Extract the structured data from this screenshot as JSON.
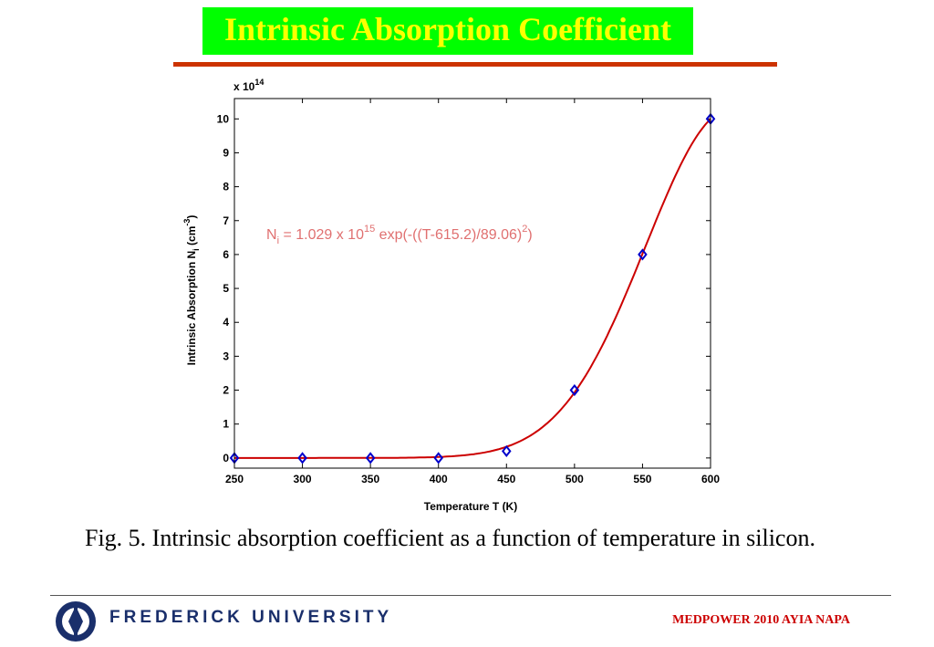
{
  "slide": {
    "title": "Intrinsic Absorption Coefficient",
    "caption": "Fig. 5.  Intrinsic absorption coefficient as a function of temperature in silicon.",
    "footer": {
      "university": "FREDERICK UNIVERSITY",
      "conference": "MEDPOWER 2010 AYIA NAPA"
    },
    "colors": {
      "title_bg": "#00ff00",
      "title_text": "#ffff00",
      "rule": "#cc3300",
      "fit_line": "#cc0000",
      "markers": "#0000cc",
      "equation_text": "#e07070",
      "conference_text": "#cc0000",
      "university_text": "#1a2f6b"
    }
  },
  "chart_data": {
    "type": "scatter",
    "xlabel": "Temperature T (K)",
    "ylabel_main": "Intrinsic Absorption N",
    "ylabel_sub": "i",
    "ylabel_unit": " (cm",
    "ylabel_unit_exp": "-3",
    "ylabel_close": ")",
    "y_multiplier_base": "x 10",
    "y_multiplier_exp": "14",
    "xlim": [
      250,
      600
    ],
    "ylim": [
      -0.3,
      10.6
    ],
    "x_ticks": [
      "250",
      "300",
      "350",
      "400",
      "450",
      "500",
      "550",
      "600"
    ],
    "y_ticks": [
      "0",
      "1",
      "2",
      "3",
      "4",
      "5",
      "6",
      "7",
      "8",
      "9",
      "10"
    ],
    "grid": false,
    "series": [
      {
        "marker": "diamond",
        "x": [
          250,
          300,
          350,
          400,
          450,
          500,
          550,
          600
        ],
        "y": [
          0,
          0,
          0,
          0,
          0.2,
          2.0,
          6.0,
          10.0
        ]
      }
    ],
    "fit": {
      "A": 10.29,
      "center": 615.2,
      "width": 89.06
    },
    "annotation": {
      "prefix": "N",
      "sub": "i",
      "mid": " = 1.029 x 10",
      "exp1": "15",
      "rest": " exp(-((T-615.2)/89.06)",
      "exp2": "2",
      "close": ")"
    }
  }
}
